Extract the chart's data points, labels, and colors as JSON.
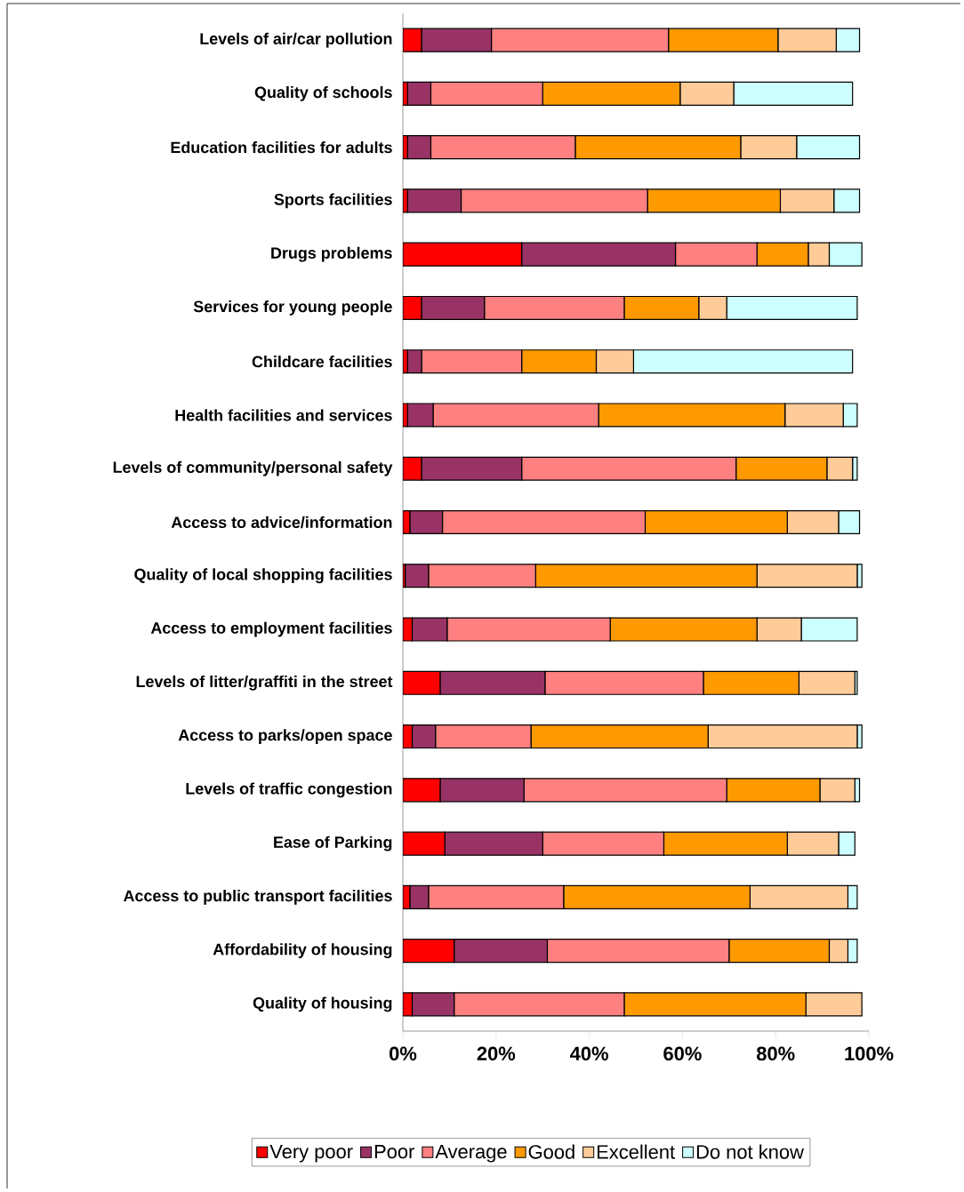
{
  "chart_data": {
    "type": "bar",
    "orientation": "horizontal",
    "stacked": true,
    "legend": "bottom",
    "grid": false,
    "categories": [
      "Levels of air/car pollution",
      "Quality of schools",
      "Education facilities for adults",
      "Sports facilities",
      "Drugs problems",
      "Services for young people",
      "Childcare facilities",
      "Health facilities and services",
      "Levels of community/personal safety",
      "Access to advice/information",
      "Quality of local shopping facilities",
      "Access to employment facilities",
      "Levels of litter/graffiti in the street",
      "Access to parks/open space",
      "Levels of traffic congestion",
      "Ease of Parking",
      "Access to public transport facilities",
      "Affordability of housing",
      "Quality of housing"
    ],
    "xlim": [
      0,
      100
    ],
    "xticks": [
      {
        "value": 0,
        "label": "0%"
      },
      {
        "value": 20,
        "label": "20%"
      },
      {
        "value": 40,
        "label": "40%"
      },
      {
        "value": 60,
        "label": "60%"
      },
      {
        "value": 80,
        "label": "80%"
      },
      {
        "value": 100,
        "label": "100%"
      }
    ],
    "series": [
      {
        "name": "Very poor",
        "color": "#ff0000",
        "values": [
          4,
          1,
          1,
          1,
          25.5,
          4,
          1,
          1,
          4,
          1.5,
          0.5,
          2,
          8,
          2,
          8,
          9,
          1.5,
          11,
          2
        ]
      },
      {
        "name": "Poor",
        "color": "#993366",
        "values": [
          15,
          5,
          5,
          11.5,
          33,
          13.5,
          3,
          5.5,
          21.5,
          7,
          5,
          7.5,
          22.5,
          5,
          18,
          21,
          4,
          20,
          9
        ]
      },
      {
        "name": "Average",
        "color": "#ff8080",
        "values": [
          38,
          24,
          31,
          40,
          17.5,
          30,
          21.5,
          35.5,
          46,
          43.5,
          23,
          35,
          34,
          20.5,
          43.5,
          26,
          29,
          39,
          36.5
        ]
      },
      {
        "name": "Good",
        "color": "#ff9900",
        "values": [
          23.5,
          29.5,
          35.5,
          28.5,
          11,
          16,
          16,
          40,
          19.5,
          30.5,
          47.5,
          31.5,
          20.5,
          38,
          20,
          26.5,
          40,
          21.5,
          39
        ]
      },
      {
        "name": "Excellent",
        "color": "#ffcc99",
        "values": [
          12.5,
          11.5,
          12,
          11.5,
          4.5,
          6,
          8,
          12.5,
          5.5,
          11,
          21.5,
          9.5,
          12,
          32,
          7.5,
          11,
          21,
          4,
          12
        ]
      },
      {
        "name": "Do not know",
        "color": "#ccffff",
        "values": [
          5,
          25.5,
          13.5,
          5.5,
          7,
          28,
          47,
          3,
          1,
          4.5,
          1,
          12,
          0.5,
          1,
          1,
          3.5,
          2,
          2,
          null
        ]
      }
    ]
  }
}
